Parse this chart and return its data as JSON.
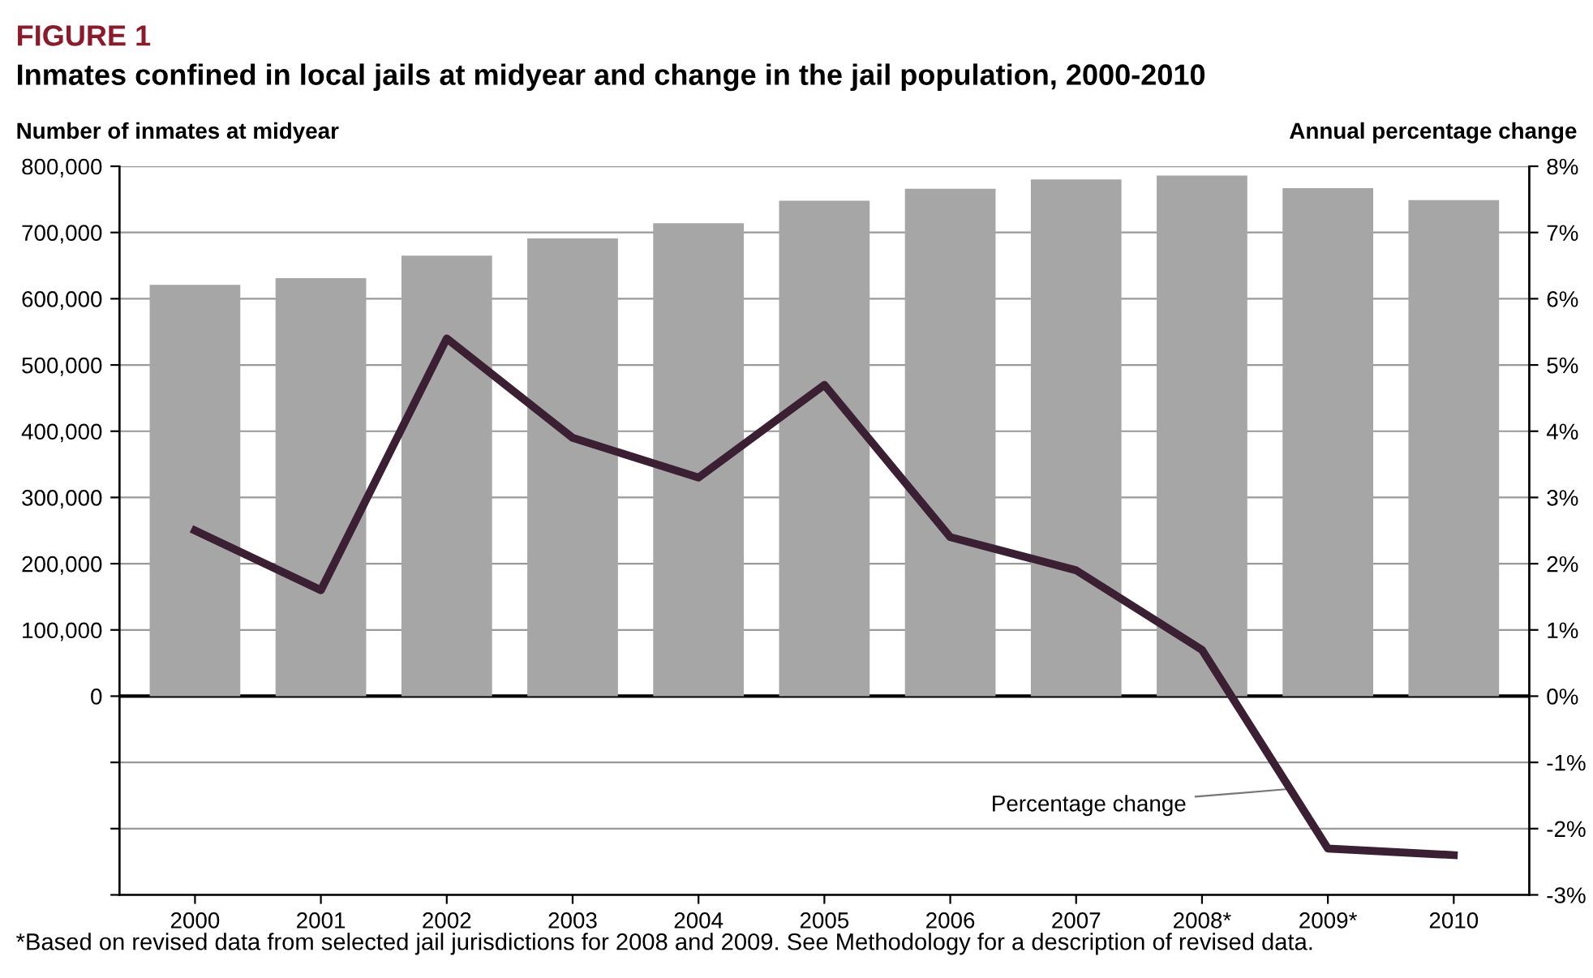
{
  "chart_data": {
    "type": "bar",
    "title": "FIGURE 1",
    "subtitle": "Inmates confined in local jails at midyear and change in the jail population, 2000-2010",
    "ylabel": "Number of inmates at midyear",
    "y2label": "Annual percentage change",
    "categories": [
      "2000",
      "2001",
      "2002",
      "2003",
      "2004",
      "2005",
      "2006",
      "2007",
      "2008*",
      "2009*",
      "2010"
    ],
    "series": [
      {
        "color": "#a6a6a6",
        "values": [
          621000,
          631000,
          665000,
          691000,
          714000,
          748000,
          766000,
          780000,
          786000,
          767000,
          749000
        ]
      },
      {
        "name": "Percentage change",
        "type": "line",
        "axis": "y2",
        "color": "#3b1f33",
        "values": [
          2.5,
          1.6,
          5.4,
          3.9,
          3.3,
          4.7,
          2.4,
          1.9,
          0.7,
          -2.3,
          -2.4
        ]
      }
    ],
    "ylim": [
      -300000,
      800000
    ],
    "yticks": [
      {
        "value": -300000,
        "label": null
      },
      {
        "value": -200000,
        "label": null
      },
      {
        "value": -100000,
        "label": null
      },
      {
        "value": 0,
        "label": "0"
      },
      {
        "value": 100000,
        "label": "100,000"
      },
      {
        "value": 200000,
        "label": "200,000"
      },
      {
        "value": 300000,
        "label": "300,000"
      },
      {
        "value": 400000,
        "label": "400,000"
      },
      {
        "value": 500000,
        "label": "500,000"
      },
      {
        "value": 600000,
        "label": "600,000"
      },
      {
        "value": 700000,
        "label": "700,000"
      },
      {
        "value": 800000,
        "label": "800,000"
      }
    ],
    "y2lim": [
      -3,
      8
    ],
    "y2ticks": [
      {
        "value": -3,
        "label": "-3%"
      },
      {
        "value": -2,
        "label": "-2%"
      },
      {
        "value": -1,
        "label": "-1%"
      },
      {
        "value": 0,
        "label": "0%"
      },
      {
        "value": 1,
        "label": "1%"
      },
      {
        "value": 2,
        "label": "2%"
      },
      {
        "value": 3,
        "label": "3%"
      },
      {
        "value": 4,
        "label": "4%"
      },
      {
        "value": 5,
        "label": "5%"
      },
      {
        "value": 6,
        "label": "6%"
      },
      {
        "value": 7,
        "label": "7%"
      },
      {
        "value": 8,
        "label": "8%"
      }
    ],
    "grid": "y",
    "annotations": [
      "*Based on revised data from selected jail jurisdictions for 2008 and 2009. See Methodology for a description of revised data."
    ]
  }
}
